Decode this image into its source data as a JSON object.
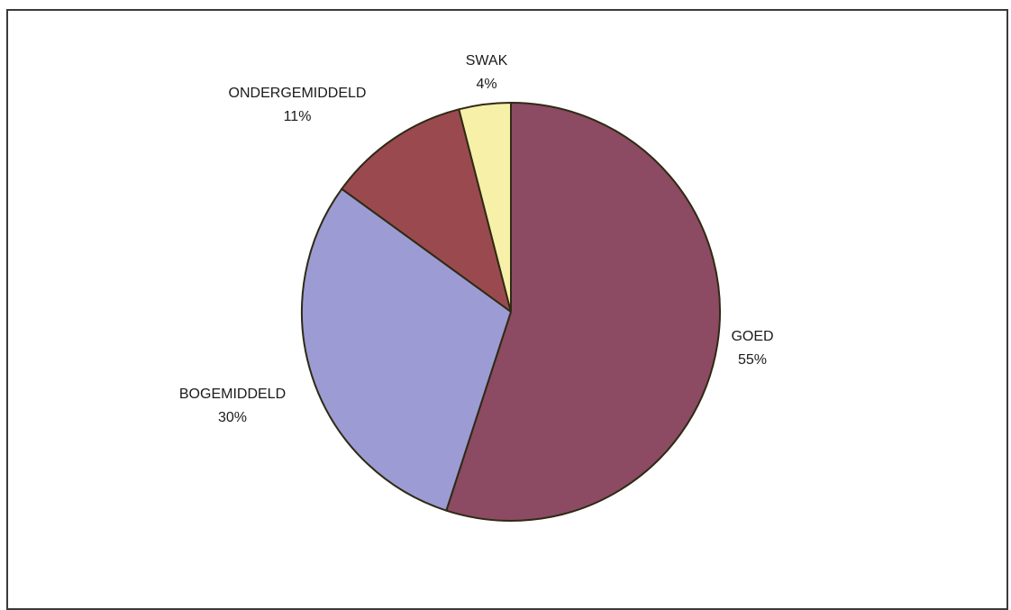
{
  "chart_data": {
    "type": "pie",
    "title": "",
    "slices": [
      {
        "label": "GOED",
        "value": 55,
        "percent_text": "55%",
        "color": "#8C4A63"
      },
      {
        "label": "BOGEMIDDELD",
        "value": 30,
        "percent_text": "30%",
        "color": "#9C9BD3"
      },
      {
        "label": "ONDERGEMIDDELD",
        "value": 11,
        "percent_text": "11%",
        "color": "#9A4A4E"
      },
      {
        "label": "SWAK",
        "value": 4,
        "percent_text": "4%",
        "color": "#F6F0A8"
      }
    ],
    "start_angle_deg": 0,
    "direction": "clockwise",
    "slice_border_color": "#2e2a14"
  }
}
